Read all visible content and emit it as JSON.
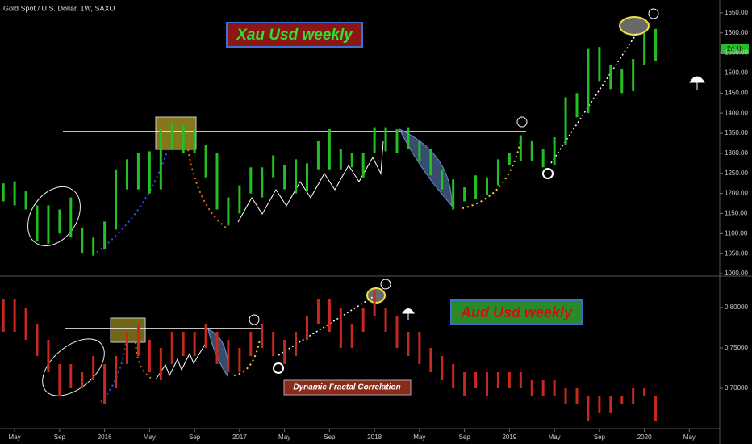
{
  "chart_data": [
    {
      "type": "ohlc",
      "title": "Gold Spot / U.S. Dollar, 1W, SAXO",
      "label": "Xau Usd  weekly",
      "price_tag": "2d 1h",
      "color": "#22c022",
      "x": [
        -1,
        0,
        1,
        2,
        3,
        4,
        5,
        6,
        7,
        8,
        9,
        10,
        11,
        12,
        13,
        14,
        15,
        16,
        17,
        18,
        19,
        20,
        21,
        22,
        23,
        24,
        25,
        26,
        27,
        28,
        29,
        30,
        31,
        32,
        33,
        34,
        35,
        36,
        37,
        38,
        39,
        40,
        41,
        42,
        43,
        44,
        45,
        46,
        47,
        48,
        49,
        50,
        51,
        52,
        53,
        54,
        55,
        56,
        57
      ],
      "low": [
        1180,
        1170,
        1160,
        1080,
        1075,
        1100,
        1090,
        1050,
        1045,
        1060,
        1110,
        1210,
        1210,
        1200,
        1210,
        1310,
        1300,
        1300,
        1240,
        1160,
        1120,
        1150,
        1200,
        1190,
        1240,
        1210,
        1200,
        1205,
        1260,
        1260,
        1260,
        1265,
        1240,
        1300,
        1305,
        1300,
        1310,
        1280,
        1245,
        1210,
        1160,
        1180,
        1185,
        1195,
        1220,
        1270,
        1280,
        1280,
        1265,
        1270,
        1320,
        1390,
        1400,
        1480,
        1460,
        1450,
        1455,
        1520,
        1530
      ],
      "high": [
        1225,
        1230,
        1205,
        1170,
        1170,
        1160,
        1190,
        1115,
        1090,
        1130,
        1260,
        1285,
        1300,
        1305,
        1360,
        1375,
        1370,
        1360,
        1320,
        1300,
        1190,
        1220,
        1265,
        1265,
        1295,
        1270,
        1285,
        1275,
        1330,
        1360,
        1310,
        1300,
        1300,
        1365,
        1365,
        1360,
        1365,
        1330,
        1310,
        1260,
        1235,
        1215,
        1245,
        1240,
        1285,
        1300,
        1345,
        1330,
        1310,
        1340,
        1440,
        1450,
        1560,
        1565,
        1520,
        1510,
        1535,
        1600,
        1610
      ],
      "xlim": [
        -1.3,
        62.7
      ],
      "ylim": [
        998,
        1682
      ],
      "yticks": [
        {
          "value": 1000,
          "label": "1000.00"
        },
        {
          "value": 1050,
          "label": "1050.00"
        },
        {
          "value": 1100,
          "label": "1100.00"
        },
        {
          "value": 1150,
          "label": "1150.00"
        },
        {
          "value": 1200,
          "label": "1200.00"
        },
        {
          "value": 1250,
          "label": "1250.00"
        },
        {
          "value": 1300,
          "label": "1300.00"
        },
        {
          "value": 1350,
          "label": "1350.00"
        },
        {
          "value": 1400,
          "label": "1400.00"
        },
        {
          "value": 1450,
          "label": "1450.00"
        },
        {
          "value": 1500,
          "label": "1500.00"
        },
        {
          "value": 1550,
          "label": "1550.00"
        },
        {
          "value": 1600,
          "label": "1600.00"
        },
        {
          "value": 1650,
          "label": "1650.00"
        }
      ]
    },
    {
      "type": "ohlc",
      "label": "Aud Usd weekly",
      "annotation": "Dynamic Fractal Correlation",
      "color": "#c8281e",
      "x": [
        -1,
        0,
        1,
        2,
        3,
        4,
        5,
        6,
        7,
        8,
        9,
        10,
        11,
        12,
        13,
        14,
        15,
        16,
        17,
        18,
        19,
        20,
        21,
        22,
        23,
        24,
        25,
        26,
        27,
        28,
        29,
        30,
        31,
        32,
        33,
        34,
        35,
        36,
        37,
        38,
        39,
        40,
        41,
        42,
        43,
        44,
        45,
        46,
        47,
        48,
        49,
        50,
        51,
        52,
        53,
        54,
        55,
        56,
        57
      ],
      "low": [
        0.77,
        0.77,
        0.76,
        0.74,
        0.72,
        0.69,
        0.7,
        0.7,
        0.71,
        0.68,
        0.7,
        0.73,
        0.74,
        0.72,
        0.71,
        0.73,
        0.74,
        0.74,
        0.75,
        0.73,
        0.72,
        0.72,
        0.74,
        0.75,
        0.74,
        0.73,
        0.74,
        0.76,
        0.78,
        0.77,
        0.75,
        0.75,
        0.77,
        0.79,
        0.77,
        0.75,
        0.74,
        0.73,
        0.72,
        0.71,
        0.7,
        0.69,
        0.7,
        0.69,
        0.7,
        0.7,
        0.7,
        0.69,
        0.69,
        0.69,
        0.68,
        0.68,
        0.66,
        0.67,
        0.67,
        0.68,
        0.68,
        0.69,
        0.66
      ],
      "high": [
        0.81,
        0.81,
        0.8,
        0.78,
        0.76,
        0.73,
        0.73,
        0.72,
        0.74,
        0.73,
        0.74,
        0.77,
        0.78,
        0.76,
        0.75,
        0.77,
        0.77,
        0.77,
        0.78,
        0.77,
        0.76,
        0.75,
        0.77,
        0.78,
        0.77,
        0.76,
        0.77,
        0.79,
        0.81,
        0.81,
        0.8,
        0.78,
        0.8,
        0.82,
        0.8,
        0.79,
        0.77,
        0.77,
        0.75,
        0.74,
        0.73,
        0.72,
        0.72,
        0.72,
        0.72,
        0.72,
        0.72,
        0.71,
        0.71,
        0.71,
        0.7,
        0.7,
        0.69,
        0.69,
        0.69,
        0.69,
        0.7,
        0.7,
        0.69
      ],
      "xlim": [
        -1.3,
        62.7
      ],
      "ylim": [
        0.651,
        0.836
      ],
      "yticks": [
        {
          "value": 0.7,
          "label": "0.70000"
        },
        {
          "value": 0.75,
          "label": "0.75000"
        },
        {
          "value": 0.8,
          "label": "0.80000"
        }
      ],
      "xticks": [
        {
          "value": 0,
          "label": "May"
        },
        {
          "value": 4,
          "label": "Sep"
        },
        {
          "value": 8,
          "label": "2016"
        },
        {
          "value": 12,
          "label": "May"
        },
        {
          "value": 16,
          "label": "Sep"
        },
        {
          "value": 20,
          "label": "2017"
        },
        {
          "value": 24,
          "label": "May"
        },
        {
          "value": 28,
          "label": "Sep"
        },
        {
          "value": 32,
          "label": "2018"
        },
        {
          "value": 36,
          "label": "May"
        },
        {
          "value": 40,
          "label": "Sep"
        },
        {
          "value": 44,
          "label": "2019"
        },
        {
          "value": 48,
          "label": "May"
        },
        {
          "value": 52,
          "label": "Sep"
        },
        {
          "value": 56,
          "label": "2020"
        },
        {
          "value": 60,
          "label": "May"
        }
      ]
    }
  ]
}
